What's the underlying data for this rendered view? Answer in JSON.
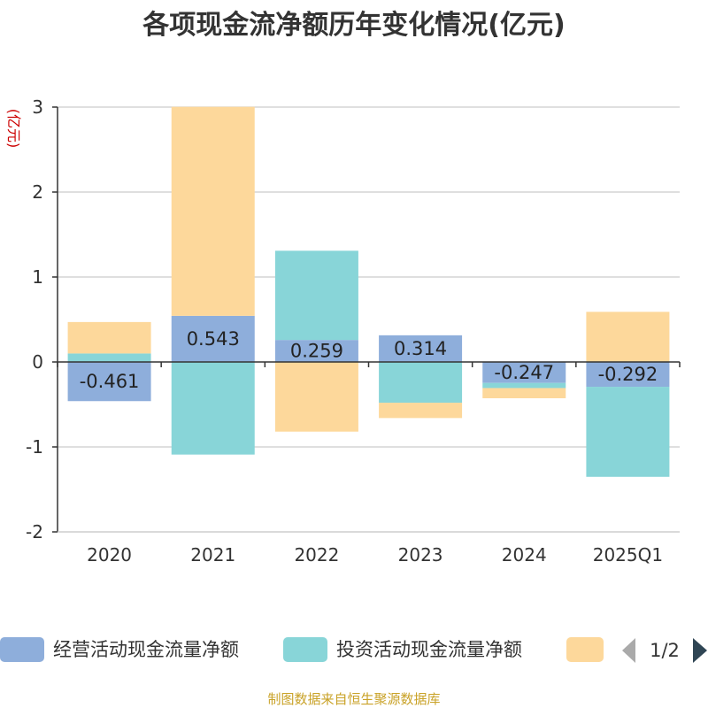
{
  "chart_data": {
    "type": "bar",
    "stacked": true,
    "title": "各项现金流净额历年变化情况(亿元)",
    "unit_label": "(亿元)",
    "categories": [
      "2020",
      "2021",
      "2022",
      "2023",
      "2024",
      "2025Q1"
    ],
    "series": [
      {
        "name": "经营活动现金流量净额",
        "color": "#8eaedb",
        "values": [
          -0.461,
          0.543,
          0.259,
          0.314,
          -0.247,
          -0.292
        ]
      },
      {
        "name": "投资活动现金流量净额",
        "color": "#88d5d8",
        "values": [
          0.1,
          -1.09,
          1.05,
          -0.48,
          -0.06,
          -1.06
        ]
      },
      {
        "name": "",
        "color": "#fdd89b",
        "values": [
          0.37,
          2.46,
          -0.82,
          -0.18,
          -0.12,
          0.59
        ]
      }
    ],
    "data_labels": [
      "-0.461",
      "0.543",
      "0.259",
      "0.314",
      "-0.247",
      "-0.292"
    ],
    "yticks": [
      "3",
      "2",
      "1",
      "0",
      "-1",
      "-2"
    ],
    "ylim": [
      -2,
      3
    ],
    "grid": true,
    "legend_position": "bottom"
  },
  "legend": {
    "page_indicator": "1/2",
    "prev_icon": "triangle-left-icon",
    "next_icon": "triangle-right-icon"
  },
  "source_text": "制图数据来自恒生聚源数据库"
}
